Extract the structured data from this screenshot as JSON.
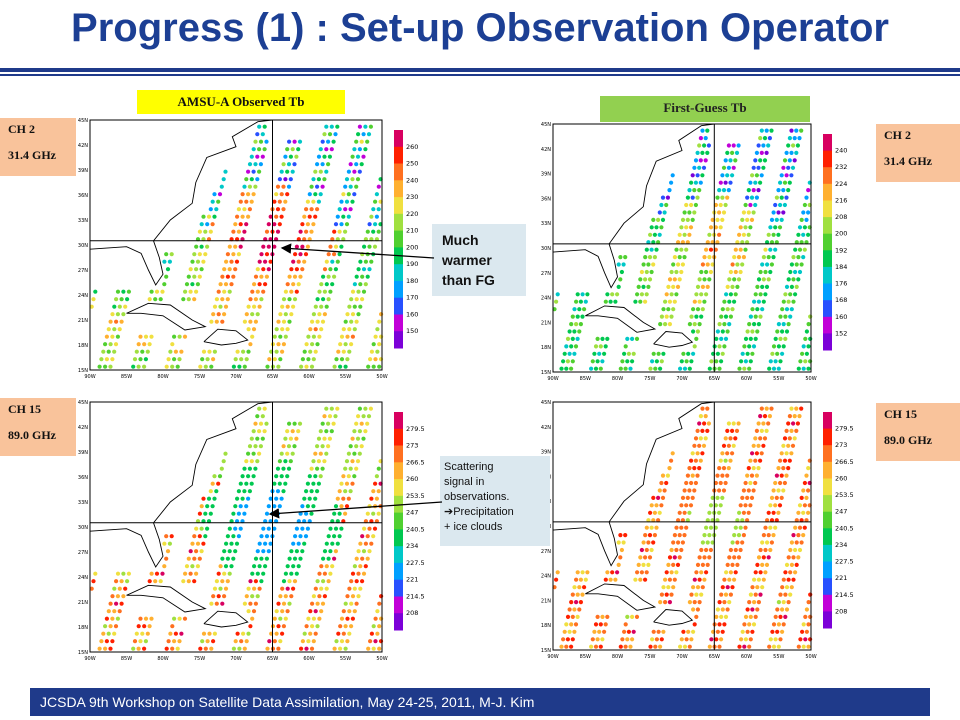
{
  "title": "Progress (1) : Set-up Observation Operator",
  "panels": {
    "left_header": "AMSU-A Observed Tb",
    "right_header": "First-Guess Tb"
  },
  "channels": {
    "ch2": {
      "name": "CH 2",
      "freq": "31.4 GHz"
    },
    "ch15": {
      "name": "CH 15",
      "freq": "89.0 GHz"
    }
  },
  "colorbars": {
    "obs_ch2": [
      "260",
      "250",
      "240",
      "230",
      "220",
      "210",
      "200",
      "190",
      "180",
      "170",
      "160",
      "150"
    ],
    "fg_ch2": [
      "240",
      "232",
      "224",
      "216",
      "208",
      "200",
      "192",
      "184",
      "176",
      "168",
      "160",
      "152"
    ],
    "obs_ch15": [
      "279.5",
      "273",
      "266.5",
      "260",
      "253.5",
      "247",
      "240.5",
      "234",
      "227.5",
      "221",
      "214.5",
      "208"
    ],
    "fg_ch15": [
      "279.5",
      "273",
      "266.5",
      "260",
      "253.5",
      "247",
      "240.5",
      "234",
      "227.5",
      "221",
      "214.5",
      "208"
    ]
  },
  "axes": {
    "lat": [
      "45N",
      "42N",
      "39N",
      "36N",
      "33N",
      "30N",
      "27N",
      "24N",
      "21N",
      "18N",
      "15N"
    ],
    "lon": [
      "90W",
      "85W",
      "80W",
      "75W",
      "70W",
      "65W",
      "60W",
      "55W",
      "50W"
    ]
  },
  "callouts": {
    "warmer": "Much warmer than FG",
    "scatter": [
      "Scattering",
      "signal in",
      "observations.",
      "➔Precipitation",
      "+ ice clouds"
    ]
  },
  "colors": {
    "title": "#1c3f94",
    "obs_header_bg": "#ffff00",
    "fg_header_bg": "#92d050",
    "channel_box_bg": "#f9c39b",
    "callout_bg": "#dbe8ef",
    "footer_bg": "#1f3a8a"
  },
  "footer": "JCSDA 9th Workshop on Satellite Data Assimilation, May 24-25, 2011,     M-J.  Kim"
}
